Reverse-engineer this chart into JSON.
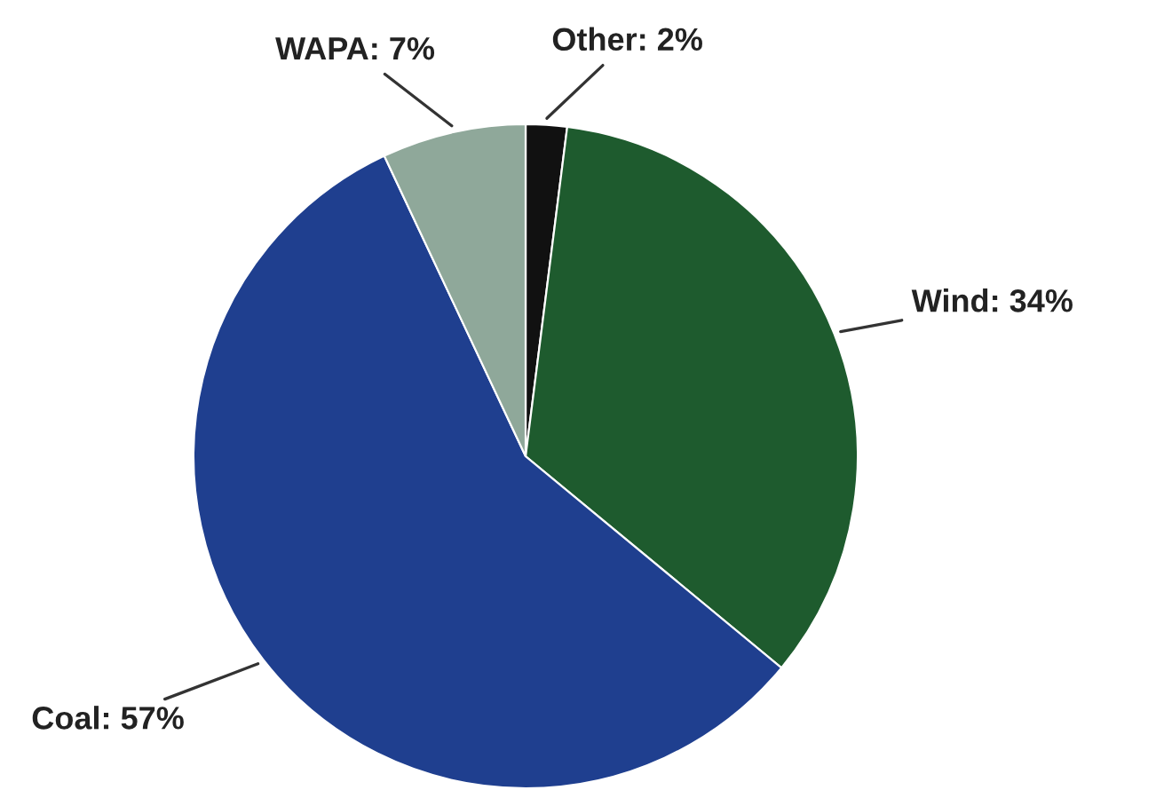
{
  "chart_data": {
    "type": "pie",
    "categories": [
      "Other: 2%",
      "Wind: 34%",
      "Coal: 57%",
      "WAPA: 7%"
    ],
    "values": [
      2,
      34,
      57,
      7
    ],
    "colors": [
      "#111111",
      "#1e5b2e",
      "#1f3f8f",
      "#8fa89a"
    ]
  }
}
